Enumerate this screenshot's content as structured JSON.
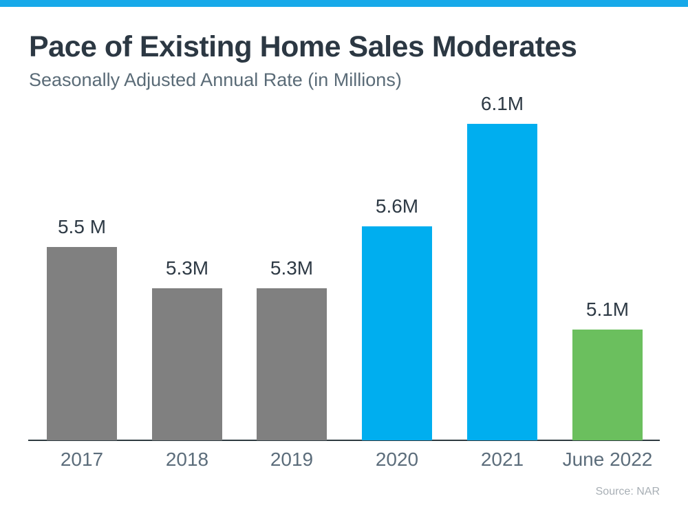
{
  "page": {
    "title": "Pace of Existing Home Sales Moderates",
    "subtitle": "Seasonally Adjusted Annual Rate (in Millions)",
    "source_note": "Source: NAR"
  },
  "colors": {
    "accent_strip": "#17A9E9",
    "title_text": "#2C3843",
    "subtitle_text": "#5A6B77",
    "value_label_text": "#2E3A45",
    "category_label_text": "#5C6D7B",
    "axis_line": "#2E3A40",
    "source_text": "#A8AFB5",
    "bar_gray": "#808080",
    "bar_blue": "#00AEEF",
    "bar_green": "#6BBF5E"
  },
  "chart_data": {
    "type": "bar",
    "title": "Pace of Existing Home Sales Moderates",
    "subtitle": "Seasonally Adjusted Annual Rate (in Millions)",
    "source": "Source: NAR",
    "categories": [
      "2017",
      "2018",
      "2019",
      "2020",
      "2021",
      "June 2022"
    ],
    "values": [
      5.5,
      5.3,
      5.3,
      5.6,
      6.1,
      5.1
    ],
    "value_labels": [
      "5.5 M",
      "5.3M",
      "5.3M",
      "5.6M",
      "6.1M",
      "5.1M"
    ],
    "bar_colors": [
      "#808080",
      "#808080",
      "#808080",
      "#00AEEF",
      "#00AEEF",
      "#6BBF5E"
    ],
    "unit": "Millions",
    "ylim": [
      4.56,
      6.25
    ],
    "grid": false,
    "legend": "none",
    "x_axis_line": true
  }
}
